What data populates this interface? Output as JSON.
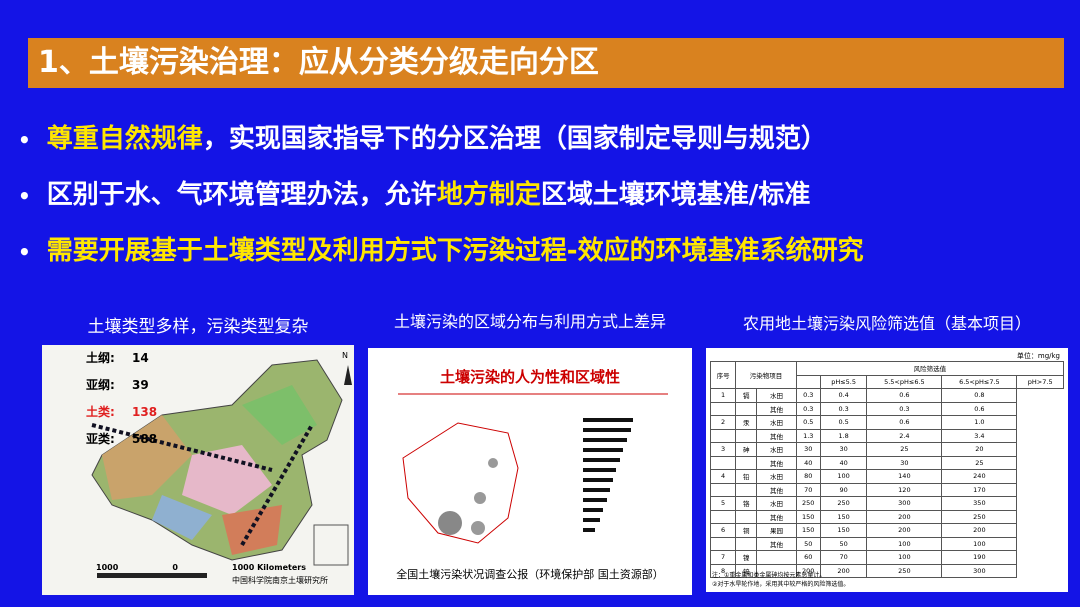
{
  "title": "1、土壤污染治理：应从分类分级走向分区",
  "bullets": [
    {
      "parts": [
        {
          "text": "尊重自然规律",
          "highlight": true
        },
        {
          "text": "，实现国家指导下的分区治理（国家制定导则与规范）",
          "highlight": false
        }
      ]
    },
    {
      "parts": [
        {
          "text": "区别于水、气环境管理办法，允许",
          "highlight": false
        },
        {
          "text": "地方制定",
          "highlight": true
        },
        {
          "text": "区域土壤环境基准/标准",
          "highlight": false
        }
      ]
    },
    {
      "parts": [
        {
          "text": "需要开展基于土壤类型及利用方式下污染过程-效应的环境基准系统研究",
          "highlight": true
        }
      ]
    }
  ],
  "map_panel": {
    "caption": "土壤类型多样，污染类型复杂",
    "counts": [
      {
        "label": "土纲:",
        "value": "14",
        "color": "#000000"
      },
      {
        "label": "亚纲:",
        "value": "39",
        "color": "#000000"
      },
      {
        "label": "土类:",
        "value": "138",
        "color": "#e02020"
      },
      {
        "label": "亚类:",
        "value": "588",
        "color": "#000000"
      }
    ],
    "scale": [
      "1000",
      "0",
      "1000 Kilometers"
    ],
    "source": "中国科学院南京土壤研究所",
    "north": "N"
  },
  "pollution_panel": {
    "caption": "土壤污染的区域分布与利用方式上差异",
    "title": "土壤污染的人为性和区域性",
    "source": "全国土壤污染状况调查公报（环境保护部  国土资源部）"
  },
  "table_panel": {
    "caption": "农用地土壤污染风险筛选值（基本项目）",
    "unit": "单位：mg/kg",
    "header": [
      "序号",
      "污染物项目",
      "风险筛选值"
    ],
    "ph": [
      "pH≤5.5",
      "5.5<pH≤6.5",
      "6.5<pH≤7.5",
      "pH>7.5"
    ],
    "rows": [
      [
        "1",
        "镉",
        "水田",
        "0.3",
        "0.4",
        "0.6",
        "0.8"
      ],
      [
        "",
        "",
        "其他",
        "0.3",
        "0.3",
        "0.3",
        "0.6"
      ],
      [
        "2",
        "汞",
        "水田",
        "0.5",
        "0.5",
        "0.6",
        "1.0"
      ],
      [
        "",
        "",
        "其他",
        "1.3",
        "1.8",
        "2.4",
        "3.4"
      ],
      [
        "3",
        "砷",
        "水田",
        "30",
        "30",
        "25",
        "20"
      ],
      [
        "",
        "",
        "其他",
        "40",
        "40",
        "30",
        "25"
      ],
      [
        "4",
        "铅",
        "水田",
        "80",
        "100",
        "140",
        "240"
      ],
      [
        "",
        "",
        "其他",
        "70",
        "90",
        "120",
        "170"
      ],
      [
        "5",
        "铬",
        "水田",
        "250",
        "250",
        "300",
        "350"
      ],
      [
        "",
        "",
        "其他",
        "150",
        "150",
        "200",
        "250"
      ],
      [
        "6",
        "铜",
        "果园",
        "150",
        "150",
        "200",
        "200"
      ],
      [
        "",
        "",
        "其他",
        "50",
        "50",
        "100",
        "100"
      ],
      [
        "7",
        "镍",
        "",
        "60",
        "70",
        "100",
        "190"
      ],
      [
        "8",
        "锌",
        "",
        "200",
        "200",
        "250",
        "300"
      ]
    ],
    "notes": [
      "注：①重金属和类金属砷均按元素总量计。",
      "②对于水旱轮作地，采用其中较严格的风险筛选值。"
    ]
  }
}
